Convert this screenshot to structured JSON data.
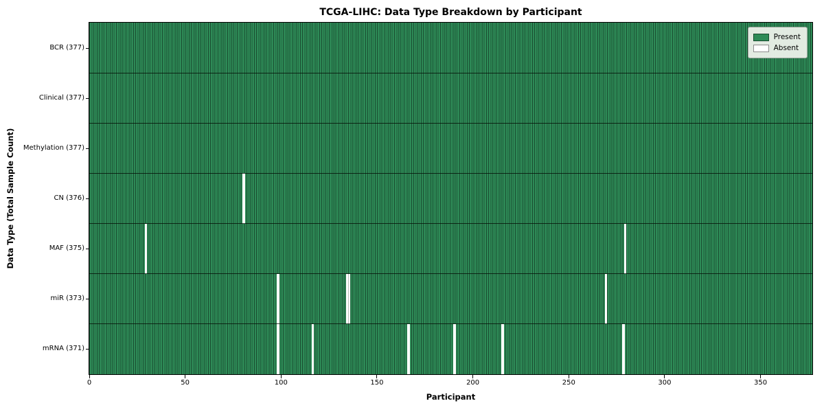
{
  "chart_data": {
    "type": "heatmap",
    "title": "TCGA-LIHC: Data Type Breakdown by Participant",
    "xlabel": "Participant",
    "ylabel": "Data Type (Total Sample Count)",
    "n_participants": 377,
    "xlim": [
      0,
      377
    ],
    "x_ticks": [
      0,
      50,
      100,
      150,
      200,
      250,
      300,
      350
    ],
    "legend_position": "upper right",
    "legend": [
      {
        "label": "Present",
        "color": "#2e8b57"
      },
      {
        "label": "Absent",
        "color": "#ffffff"
      }
    ],
    "colors": {
      "present": "#2e8b57",
      "absent": "#ffffff",
      "cell_edge": "rgba(0,0,0,0.45)",
      "row_separator": "#0a140d"
    },
    "rows": [
      {
        "label": "BCR (377)",
        "data_type": "BCR",
        "present_count": 377,
        "absent_participants": []
      },
      {
        "label": "Clinical (377)",
        "data_type": "Clinical",
        "present_count": 377,
        "absent_participants": []
      },
      {
        "label": "Methylation (377)",
        "data_type": "Methylation",
        "present_count": 377,
        "absent_participants": []
      },
      {
        "label": "CN (376)",
        "data_type": "CN",
        "present_count": 376,
        "absent_participants": [
          80
        ]
      },
      {
        "label": "MAF (375)",
        "data_type": "MAF",
        "present_count": 375,
        "absent_participants": [
          29,
          279
        ]
      },
      {
        "label": "miR (373)",
        "data_type": "miR",
        "present_count": 373,
        "absent_participants": [
          98,
          134,
          135,
          269
        ]
      },
      {
        "label": "mRNA (371)",
        "data_type": "mRNA",
        "present_count": 371,
        "absent_participants": [
          98,
          116,
          166,
          190,
          215,
          278
        ]
      }
    ]
  }
}
